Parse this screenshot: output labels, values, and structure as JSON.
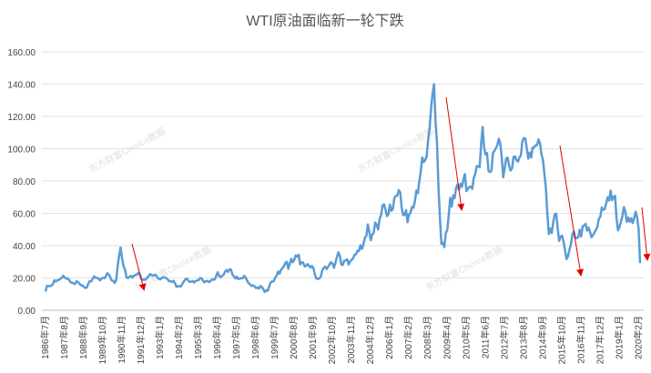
{
  "chart_data": {
    "type": "line",
    "title": "WTI原油面临新一轮下跌",
    "watermark": "东方财富Choice数据",
    "categories": [
      "1986年7月",
      null,
      null,
      null,
      null,
      null,
      null,
      null,
      null,
      null,
      null,
      null,
      null,
      "1987年8月",
      null,
      null,
      null,
      null,
      null,
      null,
      null,
      null,
      null,
      null,
      null,
      null,
      "1988年9月",
      null,
      null,
      null,
      null,
      null,
      null,
      null,
      null,
      null,
      null,
      null,
      null,
      "1989年10月",
      null,
      null,
      null,
      null,
      null,
      null,
      null,
      null,
      null,
      null,
      null,
      null,
      "1990年11月",
      null,
      null,
      null,
      null,
      null,
      null,
      null,
      null,
      null,
      null,
      null,
      null,
      "1991年12月",
      null,
      null,
      null,
      null,
      null,
      null,
      null,
      null,
      null,
      null,
      null,
      null,
      "1993年1月",
      null,
      null,
      null,
      null,
      null,
      null,
      null,
      null,
      null,
      null,
      null,
      null,
      "1994年2月",
      null,
      null,
      null,
      null,
      null,
      null,
      null,
      null,
      null,
      null,
      null,
      null,
      "1995年3月",
      null,
      null,
      null,
      null,
      null,
      null,
      null,
      null,
      null,
      null,
      null,
      null,
      "1996年4月",
      null,
      null,
      null,
      null,
      null,
      null,
      null,
      null,
      null,
      null,
      null,
      null,
      "1997年5月",
      null,
      null,
      null,
      null,
      null,
      null,
      null,
      null,
      null,
      null,
      null,
      null,
      "1998年6月",
      null,
      null,
      null,
      null,
      null,
      null,
      null,
      null,
      null,
      null,
      null,
      null,
      "1999年7月",
      null,
      null,
      null,
      null,
      null,
      null,
      null,
      null,
      null,
      null,
      null,
      null,
      "2000年8月",
      null,
      null,
      null,
      null,
      null,
      null,
      null,
      null,
      null,
      null,
      null,
      null,
      "2001年9月",
      null,
      null,
      null,
      null,
      null,
      null,
      null,
      null,
      null,
      null,
      null,
      null,
      "2002年10月",
      null,
      null,
      null,
      null,
      null,
      null,
      null,
      null,
      null,
      null,
      null,
      null,
      "2003年11月",
      null,
      null,
      null,
      null,
      null,
      null,
      null,
      null,
      null,
      null,
      null,
      null,
      "2004年12月",
      null,
      null,
      null,
      null,
      null,
      null,
      null,
      null,
      null,
      null,
      null,
      null,
      "2006年1月",
      null,
      null,
      null,
      null,
      null,
      null,
      null,
      null,
      null,
      null,
      null,
      null,
      "2007年2月",
      null,
      null,
      null,
      null,
      null,
      null,
      null,
      null,
      null,
      null,
      null,
      null,
      "2008年3月",
      null,
      null,
      null,
      null,
      null,
      null,
      null,
      null,
      null,
      null,
      null,
      null,
      "2009年4月",
      null,
      null,
      null,
      null,
      null,
      null,
      null,
      null,
      null,
      null,
      null,
      null,
      "2010年5月",
      null,
      null,
      null,
      null,
      null,
      null,
      null,
      null,
      null,
      null,
      null,
      null,
      "2011年6月",
      null,
      null,
      null,
      null,
      null,
      null,
      null,
      null,
      null,
      null,
      null,
      null,
      "2012年7月",
      null,
      null,
      null,
      null,
      null,
      null,
      null,
      null,
      null,
      null,
      null,
      null,
      "2013年8月",
      null,
      null,
      null,
      null,
      null,
      null,
      null,
      null,
      null,
      null,
      null,
      null,
      "2014年9月",
      null,
      null,
      null,
      null,
      null,
      null,
      null,
      null,
      null,
      null,
      null,
      null,
      "2015年10月",
      null,
      null,
      null,
      null,
      null,
      null,
      null,
      null,
      null,
      null,
      null,
      null,
      "2016年11月",
      null,
      null,
      null,
      null,
      null,
      null,
      null,
      null,
      null,
      null,
      null,
      null,
      "2017年12月",
      null,
      null,
      null,
      null,
      null,
      null,
      null,
      null,
      null,
      null,
      null,
      null,
      "2019年1月",
      null,
      null,
      null,
      null,
      null,
      null,
      null,
      null,
      null,
      null,
      null,
      null,
      "2020年2月",
      null
    ],
    "values": [
      11.6,
      15.1,
      14.9,
      14.9,
      15.2,
      16.1,
      18.6,
      17.8,
      18.6,
      18.7,
      19.4,
      20.0,
      21.4,
      20.3,
      19.5,
      19.8,
      18.9,
      17.3,
      17.1,
      16.7,
      16.2,
      17.9,
      17.4,
      16.5,
      15.5,
      15.5,
      14.5,
      13.8,
      14.0,
      16.3,
      18.0,
      17.8,
      19.4,
      21.0,
      20.0,
      20.0,
      19.6,
      18.5,
      19.6,
      20.1,
      19.8,
      21.1,
      22.9,
      22.1,
      20.4,
      18.4,
      18.2,
      16.9,
      18.6,
      27.2,
      33.7,
      38.9,
      32.3,
      27.3,
      25.2,
      20.5,
      19.9,
      20.8,
      21.2,
      20.2,
      21.4,
      21.7,
      21.9,
      23.2,
      22.5,
      19.5,
      18.8,
      19.0,
      18.9,
      20.2,
      20.9,
      22.4,
      21.8,
      21.4,
      21.9,
      21.7,
      20.3,
      19.4,
      19.1,
      20.1,
      20.3,
      20.3,
      19.9,
      19.1,
      17.9,
      18.0,
      17.5,
      18.2,
      16.7,
      14.5,
      15.0,
      14.8,
      14.7,
      16.4,
      17.9,
      19.1,
      19.7,
      18.4,
      17.5,
      17.7,
      18.1,
      17.2,
      18.0,
      18.5,
      18.6,
      19.9,
      19.7,
      18.4,
      17.3,
      18.0,
      18.2,
      17.4,
      18.0,
      19.0,
      18.9,
      19.1,
      21.3,
      23.5,
      21.2,
      20.4,
      21.3,
      21.9,
      23.9,
      24.9,
      23.7,
      25.4,
      25.1,
      22.2,
      21.0,
      19.7,
      20.8,
      19.3,
      19.6,
      19.9,
      19.8,
      21.3,
      20.2,
      18.3,
      16.7,
      16.1,
      15.0,
      15.4,
      14.9,
      13.7,
      14.1,
      13.4,
      15.0,
      14.4,
      12.9,
      11.3,
      12.5,
      12.0,
      14.7,
      17.3,
      17.8,
      17.9,
      20.1,
      21.3,
      23.9,
      22.6,
      25.0,
      26.1,
      27.2,
      29.4,
      29.9,
      25.7,
      28.8,
      31.8,
      29.7,
      31.2,
      33.9,
      33.1,
      34.4,
      28.4,
      29.6,
      29.6,
      27.2,
      27.4,
      28.6,
      27.6,
      26.4,
      27.4,
      26.2,
      22.2,
      19.6,
      19.3,
      19.7,
      20.7,
      24.4,
      26.3,
      27.0,
      25.5,
      26.9,
      28.4,
      29.7,
      28.9,
      26.3,
      29.4,
      32.9,
      35.9,
      33.6,
      28.3,
      28.1,
      30.7,
      30.8,
      31.6,
      28.3,
      30.3,
      31.1,
      32.2,
      34.3,
      34.7,
      36.8,
      36.7,
      40.3,
      38.0,
      40.7,
      44.9,
      46.0,
      53.1,
      48.5,
      43.3,
      46.8,
      48.0,
      54.3,
      53.0,
      50.0,
      56.5,
      58.7,
      65.0,
      65.6,
      62.4,
      58.3,
      59.4,
      65.5,
      61.6,
      62.7,
      69.4,
      70.8,
      70.9,
      74.4,
      73.0,
      63.8,
      58.9,
      59.1,
      62.0,
      54.5,
      59.3,
      60.4,
      63.9,
      63.5,
      67.5,
      74.1,
      72.4,
      79.9,
      86.0,
      94.6,
      91.7,
      93.0,
      95.4,
      105.5,
      112.6,
      125.4,
      133.9,
      140.0,
      116.7,
      104.1,
      76.6,
      57.3,
      41.1,
      41.7,
      39.1,
      47.9,
      49.6,
      59.0,
      69.6,
      64.2,
      71.1,
      69.4,
      75.7,
      78.0,
      74.5,
      78.3,
      76.4,
      81.2,
      84.3,
      73.7,
      75.3,
      76.3,
      76.6,
      75.2,
      81.9,
      84.3,
      89.2,
      89.2,
      88.6,
      102.9,
      113.5,
      100.9,
      96.3,
      97.3,
      86.3,
      85.5,
      86.3,
      97.2,
      98.6,
      100.3,
      102.2,
      106.2,
      103.3,
      94.7,
      82.3,
      87.9,
      94.1,
      94.5,
      89.5,
      86.5,
      87.9,
      94.8,
      95.3,
      92.9,
      92.0,
      94.5,
      95.8,
      104.6,
      106.6,
      106.3,
      100.5,
      93.9,
      97.6,
      94.6,
      100.8,
      100.8,
      102.1,
      102.2,
      105.8,
      103.6,
      96.5,
      93.2,
      84.4,
      75.8,
      59.3,
      47.2,
      50.6,
      47.8,
      54.5,
      59.3,
      59.8,
      50.9,
      42.9,
      45.5,
      46.2,
      42.4,
      37.2,
      31.7,
      33.3,
      37.5,
      40.8,
      46.7,
      48.8,
      44.7,
      44.7,
      45.2,
      49.8,
      45.7,
      52.0,
      52.5,
      53.5,
      49.3,
      51.1,
      48.5,
      45.2,
      46.6,
      48.0,
      49.8,
      51.6,
      56.6,
      57.9,
      63.7,
      62.2,
      62.7,
      66.3,
      70.0,
      67.9,
      74.0,
      68.1,
      70.2,
      70.8,
      57.0,
      49.5,
      51.4,
      55.0,
      58.2,
      63.9,
      60.8,
      54.7,
      57.4,
      54.8,
      57.0,
      54.0,
      57.0,
      61.0,
      57.5,
      50.5,
      29.2
    ],
    "color": "#5b9bd5",
    "ylim": [
      0,
      160
    ],
    "yticks": [
      {
        "value": 0,
        "label": "0.00"
      },
      {
        "value": 20,
        "label": "20.00"
      },
      {
        "value": 40,
        "label": "40.00"
      },
      {
        "value": 60,
        "label": "60.00"
      },
      {
        "value": 80,
        "label": "80.00"
      },
      {
        "value": 100,
        "label": "100.00"
      },
      {
        "value": 120,
        "label": "120.00"
      },
      {
        "value": 140,
        "label": "140.00"
      },
      {
        "value": 160,
        "label": "160.00"
      }
    ],
    "grid": true
  }
}
